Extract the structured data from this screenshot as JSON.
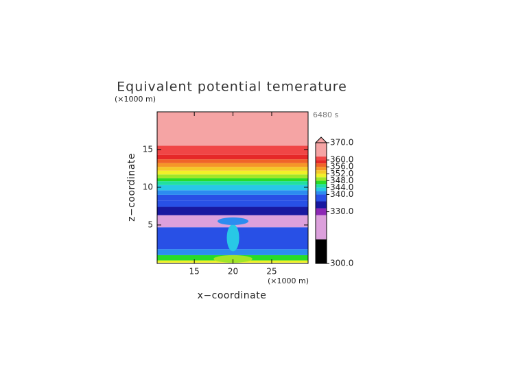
{
  "chart_data": {
    "type": "contour",
    "title": "Equivalent potential temerature",
    "y_unit": "(×1000 m)",
    "x_unit": "(×1000 m)",
    "time_label": "6480 s",
    "xlabel": "x−coordinate",
    "ylabel": "z−coordinate",
    "xlim": [
      10.2,
      29.7
    ],
    "ylim": [
      -0.1,
      20
    ],
    "xticks": [
      15,
      20,
      25
    ],
    "yticks": [
      5,
      10,
      15
    ],
    "profile": {
      "z": [
        0,
        0.3,
        1.0,
        1.8,
        4.7,
        6.3,
        7.4,
        8.2,
        9.0,
        9.6,
        10.3,
        10.8,
        11.2,
        11.7,
        12.2,
        12.7,
        13.2,
        13.7,
        14.3,
        15.5,
        20
      ],
      "values": [
        351,
        347,
        341,
        337,
        325,
        332,
        337,
        339,
        341,
        343,
        345,
        347,
        349,
        351,
        353,
        355,
        357,
        359,
        361,
        365
      ]
    },
    "features": [
      {
        "x": 20,
        "z": 0.5,
        "rx": 2.5,
        "rz": 0.5,
        "value": 348
      },
      {
        "x": 20,
        "z": 3.3,
        "rx": 0.8,
        "rz": 1.8,
        "value": 343
      },
      {
        "x": 20,
        "z": 5.5,
        "rx": 2.0,
        "rz": 0.5,
        "value": 341
      }
    ],
    "colorbar": {
      "clim": [
        300,
        370
      ],
      "bounds": [
        300,
        314,
        328,
        332,
        336,
        340,
        342,
        344,
        346,
        348,
        350,
        352,
        354,
        356,
        358,
        360,
        362,
        370
      ],
      "colors": [
        "#000000",
        "#dca0dc",
        "#8c28b4",
        "#1818a0",
        "#2850e6",
        "#2c8cf0",
        "#28c8e6",
        "#20e0a0",
        "#28dc28",
        "#a0e628",
        "#f0f028",
        "#f5c828",
        "#f59628",
        "#f06428",
        "#e62828",
        "#f04646",
        "#f5a4a4"
      ],
      "ticks": [
        {
          "value": 300,
          "label": "300.0"
        },
        {
          "value": 330,
          "label": "330.0"
        },
        {
          "value": 340,
          "label": "340.0"
        },
        {
          "value": 344,
          "label": "344.0"
        },
        {
          "value": 348,
          "label": "348.0"
        },
        {
          "value": 352,
          "label": "352.0"
        },
        {
          "value": 356,
          "label": "356.0"
        },
        {
          "value": 360,
          "label": "360.0"
        },
        {
          "value": 370,
          "label": "370.0"
        }
      ]
    }
  }
}
